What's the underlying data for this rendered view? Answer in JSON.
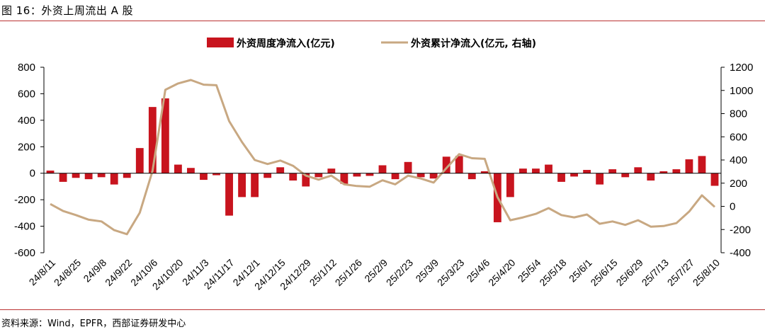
{
  "figure": {
    "title": "图 16：外资上周流出 A 股",
    "source": "资料来源：Wind，EPFR，西部证券研发中心"
  },
  "colors": {
    "bar": "#c8141e",
    "line": "#c8a882",
    "axis": "#000000",
    "rule": "#b33333"
  },
  "chart_data": {
    "type": "bar+line",
    "title": "",
    "legend": [
      "外资周度净流入(亿元)",
      "外资累计净流入(亿元，右轴)"
    ],
    "legend_labels": [
      "外资周度净流入(亿元)",
      "外资累计净流入(亿元, 右轴)"
    ],
    "y_left": {
      "min": -600,
      "max": 800,
      "ticks": [
        -600,
        -400,
        -200,
        0,
        200,
        400,
        600,
        800
      ]
    },
    "y_right": {
      "min": -400,
      "max": 1200,
      "ticks": [
        -400,
        -200,
        0,
        200,
        400,
        600,
        800,
        1000,
        1200
      ]
    },
    "x_tick_labels": [
      "24/8/11",
      "24/8/25",
      "24/9/8",
      "24/9/22",
      "24/10/6",
      "24/10/20",
      "24/11/3",
      "24/11/17",
      "24/12/1",
      "24/12/15",
      "24/12/29",
      "25/1/12",
      "25/1/26",
      "25/2/9",
      "25/2/23",
      "25/3/9",
      "25/3/23",
      "25/4/6",
      "25/4/20",
      "25/5/4",
      "25/5/18",
      "25/6/1",
      "25/6/15",
      "25/6/29",
      "25/7/13",
      "25/7/27",
      "25/8/10"
    ],
    "series": [
      {
        "name": "外资周度净流入(亿元)",
        "axis": "left",
        "type": "bar",
        "values": [
          20,
          -65,
          -35,
          -45,
          -30,
          -85,
          -35,
          190,
          500,
          565,
          65,
          40,
          -50,
          -15,
          -320,
          -180,
          -180,
          -35,
          45,
          -55,
          -100,
          -30,
          35,
          -80,
          -25,
          -20,
          60,
          -45,
          85,
          -30,
          -40,
          125,
          130,
          -45,
          15,
          -370,
          -180,
          35,
          35,
          65,
          -65,
          -25,
          25,
          -85,
          30,
          -30,
          45,
          -55,
          15,
          30,
          105,
          130,
          -95
        ]
      },
      {
        "name": "外资累计净流入(亿元，右轴)",
        "axis": "right",
        "type": "line",
        "values": [
          20,
          -40,
          -75,
          -115,
          -130,
          -205,
          -240,
          -55,
          305,
          1005,
          1060,
          1090,
          1050,
          1045,
          735,
          555,
          400,
          365,
          395,
          350,
          265,
          230,
          265,
          190,
          175,
          170,
          225,
          190,
          265,
          240,
          205,
          330,
          450,
          415,
          410,
          80,
          -120,
          -95,
          -65,
          -15,
          -75,
          -95,
          -70,
          -150,
          -130,
          -160,
          -120,
          -175,
          -170,
          -145,
          -45,
          95,
          -5
        ]
      }
    ]
  }
}
